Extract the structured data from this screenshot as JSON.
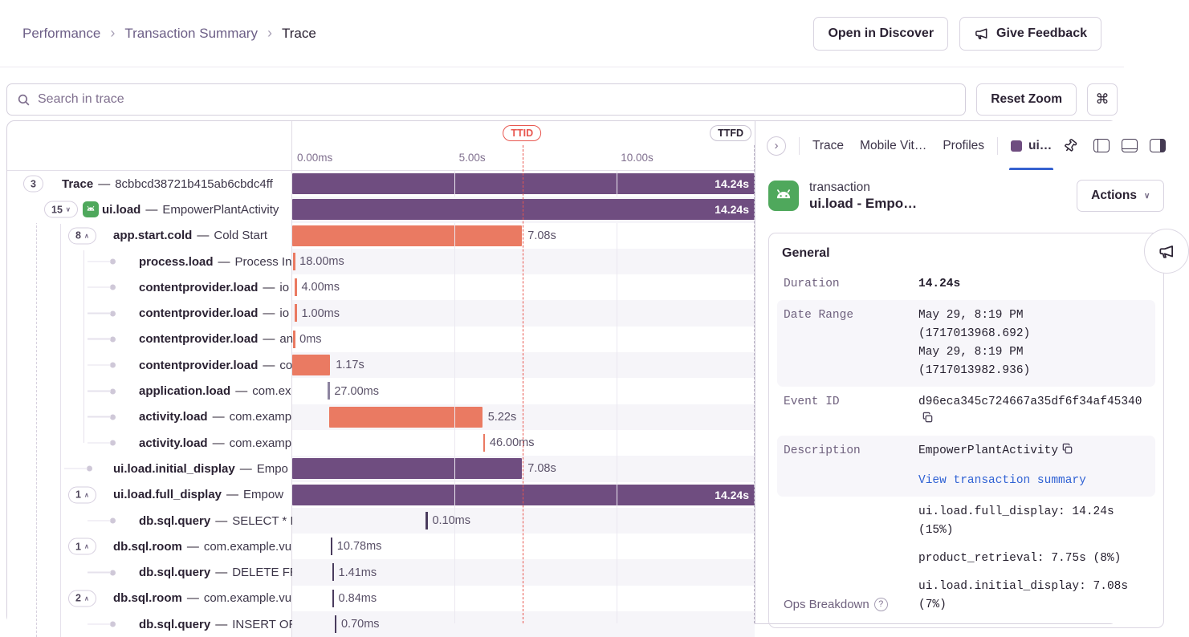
{
  "breadcrumb": {
    "separator": "›",
    "items": [
      {
        "label": "Performance"
      },
      {
        "label": "Transaction Summary"
      },
      {
        "label": "Trace"
      }
    ]
  },
  "header": {
    "open_in_discover": "Open in Discover",
    "give_feedback": "Give Feedback"
  },
  "toolbar": {
    "search_placeholder": "Search in trace",
    "reset_zoom": "Reset Zoom",
    "shortcut": "⌘"
  },
  "timeline": {
    "ticks": [
      {
        "label": "0.00ms",
        "pct": 0
      },
      {
        "label": "5.00s",
        "pct": 35.0
      },
      {
        "label": "10.00s",
        "pct": 70.0
      }
    ],
    "ttid": {
      "label": "TTID",
      "pct": 49.7
    },
    "ttfd": {
      "label": "TTFD",
      "pct": 99.8
    }
  },
  "rows_separator": "—",
  "rows": [
    {
      "op": "Trace",
      "desc": "8cbbcd38721b415ab6cbdc4ff",
      "depth": 0,
      "pill": "3",
      "chev": null,
      "bar": {
        "type": "bar",
        "color": "purple",
        "start": 0,
        "width": 100,
        "label": "14.24s",
        "inside": true
      }
    },
    {
      "op": "ui.load",
      "desc": "EmpowerPlantActivity",
      "depth": 1,
      "pill": "15",
      "chev": "down",
      "icon": "android",
      "selected": true,
      "bar": {
        "type": "bar",
        "color": "purple",
        "start": 0,
        "width": 100,
        "label": "14.24s",
        "inside": true
      }
    },
    {
      "op": "app.start.cold",
      "desc": "Cold Start",
      "depth": 2,
      "pill": "8",
      "chev": "up",
      "bar": {
        "type": "bar",
        "color": "orange",
        "start": 0,
        "width": 49.7,
        "label": "7.08s"
      }
    },
    {
      "op": "process.load",
      "desc": "Process In",
      "depth": 3,
      "leaf": true,
      "bar": {
        "type": "mark",
        "color": "orange",
        "start": 0.2,
        "label": "18.00ms"
      }
    },
    {
      "op": "contentprovider.load",
      "desc": "io",
      "depth": 3,
      "leaf": true,
      "bar": {
        "type": "mark",
        "color": "orange",
        "start": 0.6,
        "label": "4.00ms"
      }
    },
    {
      "op": "contentprovider.load",
      "desc": "io",
      "depth": 3,
      "leaf": true,
      "bar": {
        "type": "mark",
        "color": "orange",
        "start": 0.6,
        "label": "1.00ms"
      }
    },
    {
      "op": "contentprovider.load",
      "desc": "an",
      "depth": 3,
      "leaf": true,
      "bar": {
        "type": "mark",
        "color": "orange",
        "start": 0.2,
        "label": "0ms"
      }
    },
    {
      "op": "contentprovider.load",
      "desc": "co",
      "depth": 3,
      "leaf": true,
      "bar": {
        "type": "bar",
        "color": "orange",
        "start": 0,
        "width": 8.2,
        "label": "1.17s"
      }
    },
    {
      "op": "application.load",
      "desc": "com.ex",
      "depth": 3,
      "leaf": true,
      "bar": {
        "type": "mark",
        "color": "gray",
        "start": 7.7,
        "label": "27.00ms"
      }
    },
    {
      "op": "activity.load",
      "desc": "com.examp",
      "depth": 3,
      "leaf": true,
      "bar": {
        "type": "bar",
        "color": "orange",
        "start": 7.9,
        "width": 33.2,
        "label": "5.22s"
      }
    },
    {
      "op": "activity.load",
      "desc": "com.examp",
      "depth": 3,
      "leaf": true,
      "bar": {
        "type": "mark",
        "color": "orange",
        "start": 41.3,
        "label": "46.00ms"
      }
    },
    {
      "op": "ui.load.initial_display",
      "desc": "Empo",
      "depth": 2,
      "leaf": true,
      "bar": {
        "type": "bar",
        "color": "purple",
        "start": 0,
        "width": 49.7,
        "label": "7.08s"
      }
    },
    {
      "op": "ui.load.full_display",
      "desc": "Empow",
      "depth": 2,
      "pill": "1",
      "chev": "up",
      "bar": {
        "type": "bar",
        "color": "purple",
        "start": 0,
        "width": 100,
        "label": "14.24s",
        "inside": true
      }
    },
    {
      "op": "db.sql.query",
      "desc": "SELECT * F",
      "depth": 3,
      "leaf": true,
      "bar": {
        "type": "mark",
        "color": "dark",
        "start": 28.9,
        "label": "0.10ms"
      }
    },
    {
      "op": "db.sql.room",
      "desc": "com.example.vu",
      "depth": 2,
      "pill": "1",
      "chev": "up",
      "bar": {
        "type": "mark",
        "color": "dark",
        "start": 8.3,
        "label": "10.78ms"
      }
    },
    {
      "op": "db.sql.query",
      "desc": "DELETE FR",
      "depth": 3,
      "leaf": true,
      "bar": {
        "type": "mark",
        "color": "dark",
        "start": 8.6,
        "label": "1.41ms"
      }
    },
    {
      "op": "db.sql.room",
      "desc": "com.example.vu",
      "depth": 2,
      "pill": "2",
      "chev": "up",
      "bar": {
        "type": "mark",
        "color": "dark",
        "start": 8.6,
        "label": "0.84ms"
      }
    },
    {
      "op": "db.sql.query",
      "desc": "INSERT OR",
      "depth": 3,
      "leaf": true,
      "bar": {
        "type": "mark",
        "color": "dark",
        "start": 9.2,
        "label": "0.70ms"
      }
    }
  ],
  "drawer": {
    "tabs": [
      {
        "label": "Trace"
      },
      {
        "label": "Mobile Vit…"
      },
      {
        "label": "Profiles"
      }
    ],
    "active_tab": {
      "label": "ui…",
      "swatch_color": "#6f4d80"
    },
    "transaction": {
      "type_label": "transaction",
      "title": "ui.load - Empo…",
      "actions_label": "Actions"
    },
    "general": {
      "title": "General",
      "duration": {
        "key": "Duration",
        "value": "14.24s"
      },
      "date_range": {
        "key": "Date Range",
        "lines": [
          "May 29, 8:19 PM",
          "(1717013968.692)",
          "May 29, 8:19 PM",
          "(1717013982.936)"
        ]
      },
      "event_id": {
        "key": "Event ID",
        "value": "d96eca345c724667a35df6f34af45340"
      },
      "description": {
        "key": "Description",
        "value": "EmpowerPlantActivity",
        "link": "View transaction summary"
      },
      "ops_breakdown": {
        "key": "Ops Breakdown",
        "items": [
          "ui.load.full_display: 14.24s (15%)",
          "product_retrieval: 7.75s (8%)",
          "ui.load.initial_display: 7.08s (7%)"
        ]
      }
    }
  },
  "colors": {
    "bar_purple": "#6f4d80",
    "bar_orange": "#ea7a62",
    "ttid_red": "#e8564f",
    "active_tab_blue": "#3662d0",
    "link_blue": "#3062d4",
    "android_green": "#4fa85c",
    "selected_row_blue": "#5b7fd9"
  }
}
